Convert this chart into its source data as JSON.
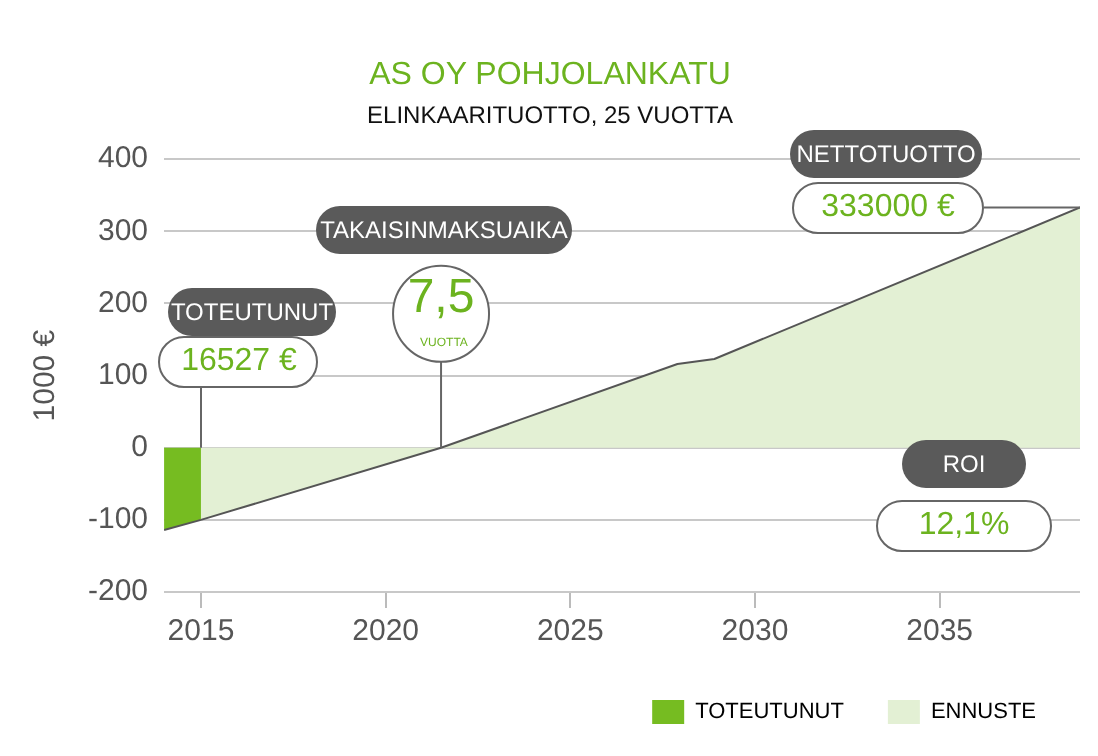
{
  "chart_data": {
    "type": "area",
    "title": "AS OY POHJOLANKATU",
    "subtitle": "ELINKAARITUOTTO, 25 VUOTTA",
    "ylabel": "1000 €",
    "series": [
      {
        "name": "TOTEUTUNUT",
        "color": "#76bc21",
        "x": [
          2014,
          2015
        ],
        "values": [
          -114,
          -100
        ]
      },
      {
        "name": "ENNUSTE",
        "color": "#e3f0d4",
        "x": [
          2015,
          2021.5,
          2027.9,
          2028.9,
          2038.8
        ],
        "values": [
          -100,
          0,
          116,
          123,
          333
        ]
      }
    ],
    "xlim": [
      2014,
      2038.8
    ],
    "xticks": [
      2015,
      2020,
      2025,
      2030,
      2035
    ],
    "ylim": [
      -200,
      400
    ],
    "yticks": [
      -200,
      -100,
      0,
      100,
      200,
      300,
      400
    ],
    "grid": "y",
    "legend": "bottom right",
    "annotations": [
      "TOTEUTUNUT",
      {
        "text": "16527 €",
        "x": 2015,
        "y": 0
      },
      "TAKAISINMAKSUAIKA",
      {
        "text": "7,5",
        "x": 2021.5,
        "y": 0
      },
      "VUOTTA",
      "NETTOTUOTTO",
      {
        "text": "333000 €",
        "x": 2038.8,
        "y": 333
      },
      "ROI",
      "12,1%"
    ]
  }
}
